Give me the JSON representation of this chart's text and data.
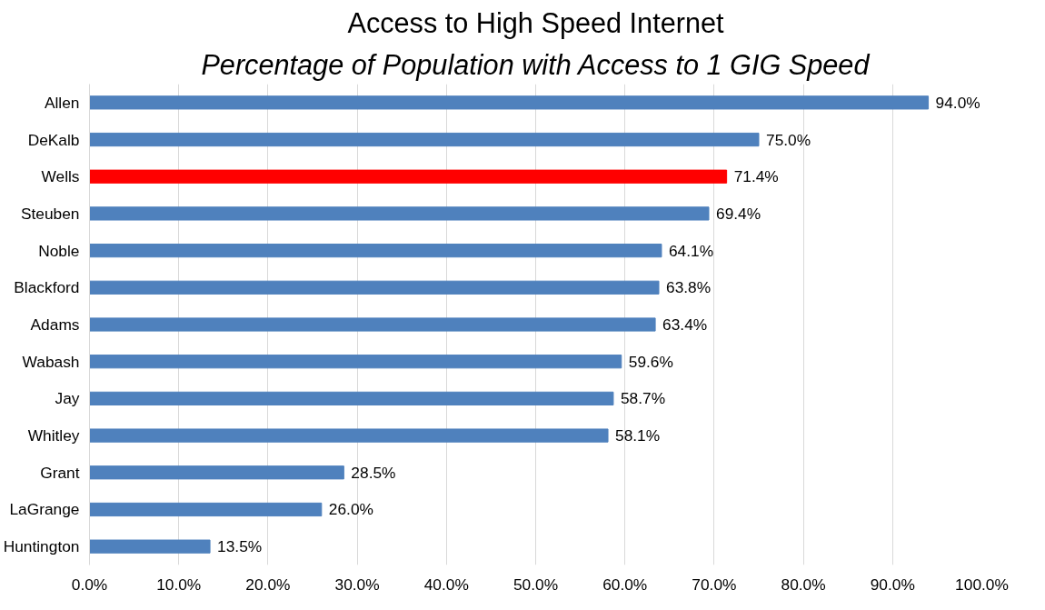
{
  "chart_data": {
    "type": "bar",
    "orientation": "horizontal",
    "title": "Access to High Speed Internet",
    "subtitle": "Percentage of Population with Access to 1 GIG Speed",
    "categories": [
      "Allen",
      "DeKalb",
      "Wells",
      "Steuben",
      "Noble",
      "Blackford",
      "Adams",
      "Wabash",
      "Jay",
      "Whitley",
      "Grant",
      "LaGrange",
      "Huntington"
    ],
    "values": [
      94.0,
      75.0,
      71.4,
      69.4,
      64.1,
      63.8,
      63.4,
      59.6,
      58.7,
      58.1,
      28.5,
      26.0,
      13.5
    ],
    "value_labels": [
      "94.0%",
      "75.0%",
      "71.4%",
      "69.4%",
      "64.1%",
      "63.8%",
      "63.4%",
      "59.6%",
      "58.7%",
      "58.1%",
      "28.5%",
      "26.0%",
      "13.5%"
    ],
    "colors": [
      "#4f81bd",
      "#4f81bd",
      "#ff0000",
      "#4f81bd",
      "#4f81bd",
      "#4f81bd",
      "#4f81bd",
      "#4f81bd",
      "#4f81bd",
      "#4f81bd",
      "#4f81bd",
      "#4f81bd",
      "#4f81bd"
    ],
    "xlim": [
      0,
      100
    ],
    "xticks": [
      {
        "value": 0,
        "label": "0.0%"
      },
      {
        "value": 10,
        "label": "10.0%"
      },
      {
        "value": 20,
        "label": "20.0%"
      },
      {
        "value": 30,
        "label": "30.0%"
      },
      {
        "value": 40,
        "label": "40.0%"
      },
      {
        "value": 50,
        "label": "50.0%"
      },
      {
        "value": 60,
        "label": "60.0%"
      },
      {
        "value": 70,
        "label": "70.0%"
      },
      {
        "value": 80,
        "label": "80.0%"
      },
      {
        "value": 90,
        "label": "90.0%"
      },
      {
        "value": 100,
        "label": "100.0%"
      }
    ],
    "grid": "x"
  }
}
